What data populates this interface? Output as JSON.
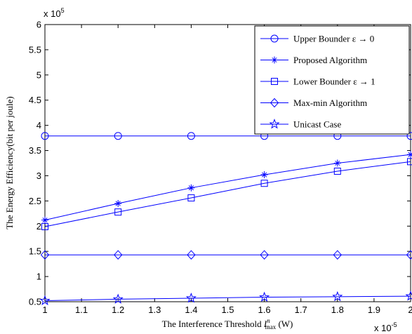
{
  "chart_data": {
    "type": "line",
    "xlabel_prefix": "The Interference Threshold ",
    "xlabel_symbol": "I",
    "xlabel_sup": "n",
    "xlabel_sub": "max",
    "xlabel_unit": " (W)",
    "ylabel": "The Energy Efficiency(bit per joule)",
    "x_multiplier": "x 10",
    "x_exponent": "-5",
    "y_multiplier": "x 10",
    "y_exponent": "5",
    "xlim": [
      1,
      2
    ],
    "ylim": [
      0.5,
      6
    ],
    "x_ticks": [
      1,
      1.1,
      1.2,
      1.3,
      1.4,
      1.5,
      1.6,
      1.7,
      1.8,
      1.9,
      2
    ],
    "x_tick_labels": [
      "1",
      "1.1",
      "1.2",
      "1.3",
      "1.4",
      "1.5",
      "1.6",
      "1.7",
      "1.8",
      "1.9",
      "2"
    ],
    "y_ticks": [
      0.5,
      1,
      1.5,
      2,
      2.5,
      3,
      3.5,
      4,
      4.5,
      5,
      5.5,
      6
    ],
    "y_tick_labels": [
      "0.5",
      "1",
      "1.5",
      "2",
      "2.5",
      "3",
      "3.5",
      "4",
      "4.5",
      "5",
      "5.5",
      "6"
    ],
    "grid": false,
    "legend_position": "top-right",
    "line_color": "#0000ff",
    "x": [
      1,
      1.2,
      1.4,
      1.6,
      1.8,
      2
    ],
    "series": [
      {
        "name": "Upper Bounder ε → 0",
        "marker": "circle",
        "values": [
          3.79,
          3.79,
          3.79,
          3.79,
          3.79,
          3.79
        ]
      },
      {
        "name": "Proposed Algorithm",
        "marker": "asterisk",
        "values": [
          2.12,
          2.45,
          2.76,
          3.02,
          3.25,
          3.42
        ]
      },
      {
        "name": "Lower Bounder ε → 1",
        "marker": "square",
        "values": [
          1.99,
          2.28,
          2.56,
          2.85,
          3.09,
          3.28
        ]
      },
      {
        "name": "Max-min Algorithm",
        "marker": "diamond",
        "values": [
          1.43,
          1.43,
          1.43,
          1.43,
          1.43,
          1.43
        ]
      },
      {
        "name": "Unicast Case",
        "marker": "star",
        "values": [
          0.52,
          0.55,
          0.57,
          0.59,
          0.6,
          0.61
        ]
      }
    ]
  }
}
